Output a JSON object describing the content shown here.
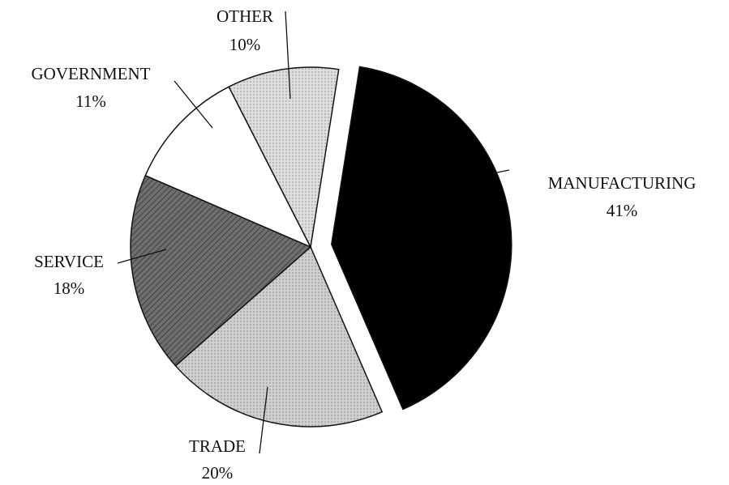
{
  "chart_data": {
    "type": "pie",
    "categories": [
      "MANUFACTURING",
      "TRADE",
      "SERVICE",
      "GOVERNMENT",
      "OTHER"
    ],
    "values": [
      41,
      20,
      18,
      11,
      10
    ],
    "value_labels": [
      "41%",
      "20%",
      "18%",
      "11%",
      "10%"
    ],
    "colors": [
      "#000000",
      "#cfcfcf",
      "#6e6e6e",
      "#ffffff",
      "#dedede"
    ]
  }
}
